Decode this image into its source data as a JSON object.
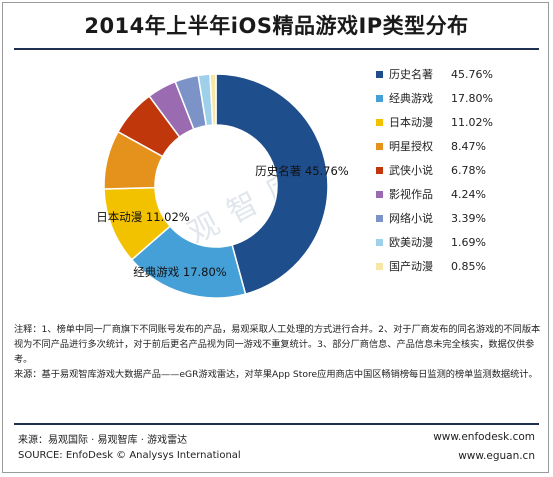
{
  "title": "2014年上半年iOS精品游戏IP类型分布",
  "watermark": "易观智库",
  "chart_data": {
    "type": "pie",
    "title": "2014年上半年iOS精品游戏IP类型分布",
    "unit": "%",
    "donut": true,
    "legend_position": "right",
    "slices": [
      {
        "label": "历史名著",
        "value": 45.76,
        "display": "45.76%",
        "color": "#1f4e8c",
        "callout": "历史名著  45.76%"
      },
      {
        "label": "经典游戏",
        "value": 17.8,
        "display": "17.80%",
        "color": "#45a0d8",
        "callout": "经典游戏  17.80%"
      },
      {
        "label": "日本动漫",
        "value": 11.02,
        "display": "11.02%",
        "color": "#f2c200",
        "callout": "日本动漫  11.02%"
      },
      {
        "label": "明星授权",
        "value": 8.47,
        "display": "8.47%",
        "color": "#e5921d",
        "callout": ""
      },
      {
        "label": "武侠小说",
        "value": 6.78,
        "display": "6.78%",
        "color": "#c0370c",
        "callout": ""
      },
      {
        "label": "影视作品",
        "value": 4.24,
        "display": "4.24%",
        "color": "#9a6bb0",
        "callout": ""
      },
      {
        "label": "网络小说",
        "value": 3.39,
        "display": "3.39%",
        "color": "#7b93c7",
        "callout": ""
      },
      {
        "label": "欧美动漫",
        "value": 1.69,
        "display": "1.69%",
        "color": "#9fd0ea",
        "callout": ""
      },
      {
        "label": "国产动漫",
        "value": 0.85,
        "display": "0.85%",
        "color": "#f6e7a6",
        "callout": ""
      }
    ]
  },
  "notes": {
    "line1": "注释：1、榜单中同一厂商旗下不同账号发布的产品，易观采取人工处理的方式进行合并。2、对于厂商发布的同名游戏的不同版本视为不同产品进行多次统计，对于前后更名产品视为同一游戏不重复统计。3、部分厂商信息、产品信息未完全核实，数据仅供参考。",
    "line2": "来源：基于易观智库游戏大数据产品——eGR游戏雷达，对苹果App Store应用商店中国区畅销榜每日监测的榜单监测数据统计。"
  },
  "footer": {
    "source_cn": "来源：易观国际 · 易观智库 · 游戏雷达",
    "source_en": "SOURCE: EnfoDesk © Analysys International",
    "url1": "www.enfodesk.com",
    "url2": "www.eguan.cn"
  }
}
